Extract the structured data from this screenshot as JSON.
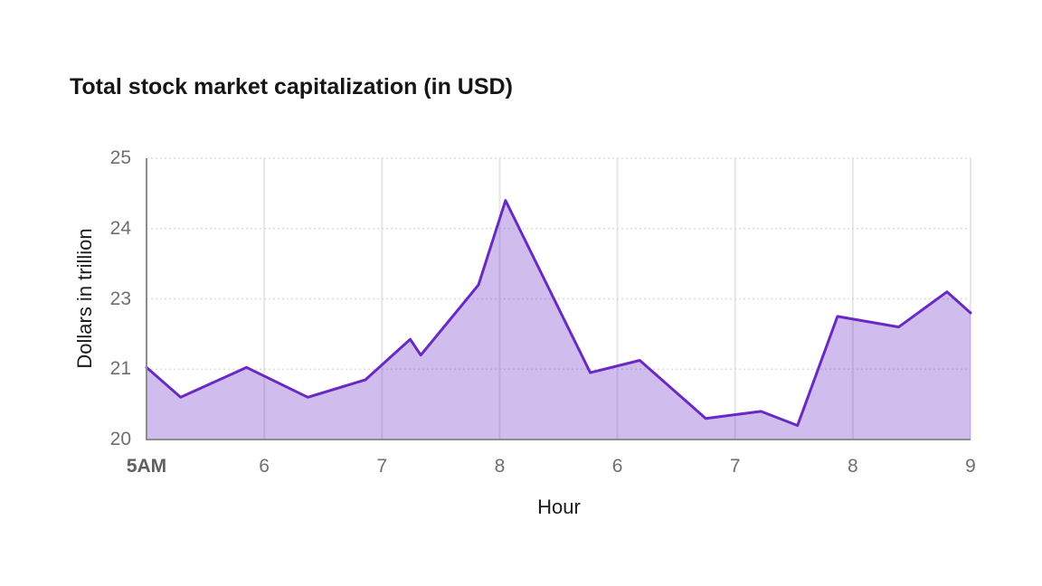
{
  "title": "Total stock market capitalization (in USD)",
  "chart_data": {
    "type": "area",
    "title": "Total stock market capitalization (in USD)",
    "xlabel": "Hour",
    "ylabel": "Dollars in trillion",
    "x_tick_labels": [
      "5AM",
      "6",
      "7",
      "8",
      "6",
      "7",
      "8",
      "9"
    ],
    "y_tick_labels": [
      "20",
      "21",
      "23",
      "24",
      "25"
    ],
    "y_tick_values": [
      20,
      21,
      23,
      24,
      25
    ],
    "x_unit": "tick-index (0 = 5AM tick, 7 = 9 tick)",
    "grid": {
      "horizontal": "dotted",
      "vertical": "solid"
    },
    "legend_position": "none",
    "points": [
      {
        "x": 0.0,
        "y": 21.05
      },
      {
        "x": 0.29,
        "y": 20.6
      },
      {
        "x": 0.85,
        "y": 21.05
      },
      {
        "x": 1.37,
        "y": 20.6
      },
      {
        "x": 1.86,
        "y": 20.85
      },
      {
        "x": 2.24,
        "y": 21.85
      },
      {
        "x": 2.33,
        "y": 21.4
      },
      {
        "x": 2.82,
        "y": 23.2
      },
      {
        "x": 3.05,
        "y": 24.4
      },
      {
        "x": 3.77,
        "y": 20.95
      },
      {
        "x": 4.19,
        "y": 21.25
      },
      {
        "x": 4.75,
        "y": 20.3
      },
      {
        "x": 5.22,
        "y": 20.4
      },
      {
        "x": 5.53,
        "y": 20.2
      },
      {
        "x": 5.87,
        "y": 22.5
      },
      {
        "x": 6.39,
        "y": 22.2
      },
      {
        "x": 6.8,
        "y": 23.1
      },
      {
        "x": 7.0,
        "y": 22.6
      }
    ],
    "colors": {
      "line": "#6929c4",
      "fill": "rgba(105,41,196,0.31)",
      "axis_line": "#8d8d8d",
      "grid_vertical": "#e6e6e6",
      "grid_horizontal": "#dcdcdc",
      "tick_text": "#6f6f6f",
      "title_text": "#161616"
    }
  }
}
